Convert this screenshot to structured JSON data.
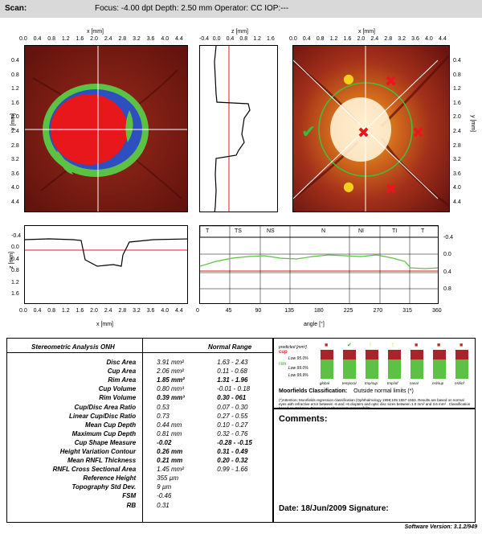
{
  "header": {
    "scan_label": "Scan:",
    "info": "Focus: -4.00 dpt   Depth: 2.50 mm   Operator: CC   IOP:---"
  },
  "axes": {
    "x_mm_ticks": [
      "0.0",
      "0.4",
      "0.8",
      "1.2",
      "1.6",
      "2.0",
      "2.4",
      "2.8",
      "3.2",
      "3.6",
      "4.0",
      "4.4"
    ],
    "y_mm_ticks": [
      "0.4",
      "0.8",
      "1.2",
      "1.6",
      "2.0",
      "2.4",
      "2.8",
      "3.2",
      "3.6",
      "4.0",
      "4.4"
    ],
    "z_ticks": [
      "-0.4",
      "0.0",
      "0.4",
      "0.8",
      "1.2",
      "1.6"
    ],
    "x_label": "x [mm]",
    "y_label": "y [mm]",
    "z_label": "z [mm]",
    "angle_label": "angle [°]",
    "angle_ticks": [
      "0",
      "45",
      "90",
      "135",
      "180",
      "225",
      "270",
      "315",
      "360"
    ],
    "rnfl_ticks": [
      "-0.4",
      "0.0",
      "0.4",
      "0.8"
    ],
    "sector_labels": [
      "T",
      "TS",
      "NS",
      "N",
      "NI",
      "TI",
      "T"
    ]
  },
  "stereometric": {
    "title": "Stereometric Analysis ONH",
    "normal_range_label": "Normal Range",
    "rows": [
      {
        "label": "Disc Area",
        "value": "3.91 mm²",
        "range": "1.63 - 2.43",
        "bold": false
      },
      {
        "label": "Cup Area",
        "value": "2.06 mm²",
        "range": "0.11 - 0.68",
        "bold": false
      },
      {
        "label": "Rim Area",
        "value": "1.85 mm²",
        "range": "1.31 - 1.96",
        "bold": true
      },
      {
        "label": "Cup Volume",
        "value": "0.80 mm³",
        "range": "-0.01 - 0.18",
        "bold": false
      },
      {
        "label": "Rim Volume",
        "value": "0.39 mm³",
        "range": "0.30 - 061",
        "bold": true
      },
      {
        "label": "Cup/Disc Area Ratio",
        "value": "0.53",
        "range": "0.07 - 0.30",
        "bold": false
      },
      {
        "label": "Linear Cup/Disc Ratio",
        "value": "0.73",
        "range": "0.27 - 0.55",
        "bold": false
      },
      {
        "label": "Mean Cup Depth",
        "value": "0.44 mm",
        "range": "0.10 - 0.27",
        "bold": false
      },
      {
        "label": "Maximum Cup Depth",
        "value": "0.81 mm",
        "range": "0.32 - 0.76",
        "bold": false
      },
      {
        "label": "Cup Shape Measure",
        "value": "-0.02",
        "range": "-0.28 - -0.15",
        "bold": true
      },
      {
        "label": "Height Variation Contour",
        "value": "0.26 mm",
        "range": "0.31 - 0.49",
        "bold": true
      },
      {
        "label": "Mean RNFL Thickness",
        "value": "0.21 mm",
        "range": "0.20 - 0.32",
        "bold": true
      },
      {
        "label": "RNFL Cross Sectional Area",
        "value": "1.45 mm²",
        "range": "0.99 - 1.66",
        "bold": false
      },
      {
        "label": "Reference Height",
        "value": "355 µm",
        "range": "",
        "bold": false
      },
      {
        "label": "Topography Std Dev.",
        "value": "9 µm",
        "range": "",
        "bold": false
      },
      {
        "label": "FSM",
        "value": "-0.46",
        "range": "",
        "bold": false
      },
      {
        "label": "RB",
        "value": "0.31",
        "range": "",
        "bold": false
      }
    ]
  },
  "moorfields": {
    "legend": {
      "predicted": "predicted [mm²]",
      "cup": "cup",
      "rim": "rim",
      "low95": "Low 95.0%",
      "low99": "Low 99.0%",
      "low999": "Low 99.9%"
    },
    "categories": [
      "global",
      "temporal",
      "tmp/sup",
      "tmp/inf",
      "nasal",
      "nsl/sup",
      "nsl/inf"
    ],
    "classification_label": "Moorfields Classification:",
    "classification_value": "Outside normal limits (*)",
    "footnote": "(*)Attention: Moorfields regression classification (Ophthalmology 1998;105:1557-1563. Results are based on normal eyes with refractive error between -6 and +6 diopters and optic disc sizes between 1.0 mm² and 3.6 mm² . Classification based on statistics. Diagnosis is physician's responsibility."
  },
  "comments_label": "Comments:",
  "date_signature": "Date: 18/Jun/2009 Signature:",
  "software_version": "Software Version: 3.1.2/949",
  "colors": {
    "red": "#e8171c",
    "green": "#5cc244",
    "blue": "#2e4fbf",
    "fundus": "#7a1a12"
  }
}
